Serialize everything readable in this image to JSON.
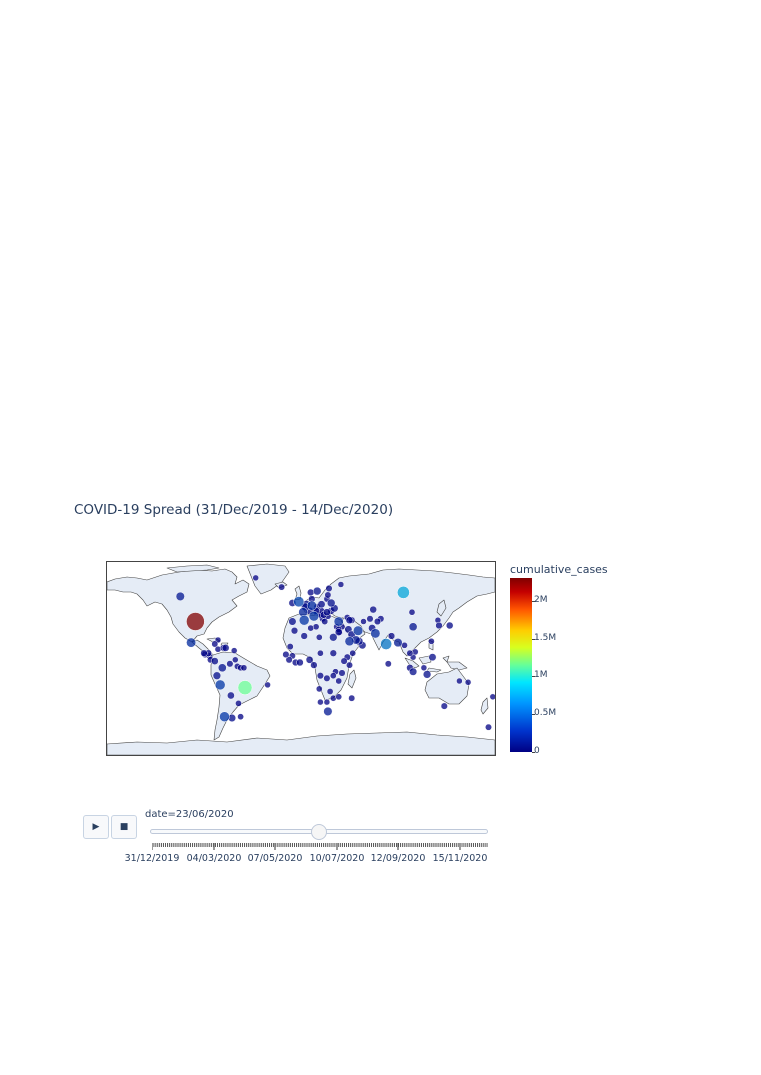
{
  "title": "COVID-19 Spread (31/Dec/2019 - 14/Dec/2020)",
  "colorbar": {
    "title": "cumulative_cases",
    "ticks": [
      "0",
      "0.5M",
      "1M",
      "1.5M",
      "2M"
    ],
    "tick_values": [
      0,
      500000,
      1000000,
      1500000,
      2000000
    ],
    "max": 2300000,
    "colorscale": "Jet"
  },
  "colors": {
    "land": "#e5ecf6",
    "coast": "#444444",
    "marker_low": "#000083",
    "marker_high": "#800000",
    "marker_opacity": 0.75
  },
  "animation": {
    "play_icon": "play-icon",
    "stop_icon": "stop-icon",
    "current_value": "date=23/06/2020",
    "current_fraction": 0.5,
    "frame_count": 350,
    "slider_labels": [
      "31/12/2019",
      "04/03/2020",
      "07/05/2020",
      "10/07/2020",
      "12/09/2020",
      "15/11/2020"
    ]
  },
  "chart_data": {
    "type": "scatter_geo",
    "projection": "equirectangular",
    "color_metric": "cumulative_cases",
    "size_metric": "cumulative_cases",
    "date": "23/06/2020",
    "points": [
      {
        "lon": -98,
        "lat": 39,
        "value": 2300000
      },
      {
        "lon": -52,
        "lat": -11,
        "value": 1100000
      },
      {
        "lon": 95,
        "lat": 61,
        "value": 600000
      },
      {
        "lon": 79,
        "lat": 22,
        "value": 440000
      },
      {
        "lon": -112,
        "lat": 58,
        "value": 100000
      },
      {
        "lon": -102,
        "lat": 23,
        "value": 190000
      },
      {
        "lon": -75,
        "lat": -9,
        "value": 260000
      },
      {
        "lon": -71,
        "lat": -33,
        "value": 250000
      },
      {
        "lon": 3,
        "lat": 40,
        "value": 246000
      },
      {
        "lon": 12,
        "lat": 43,
        "value": 238000
      },
      {
        "lon": -2,
        "lat": 54,
        "value": 306000
      },
      {
        "lon": 53,
        "lat": 32,
        "value": 209000
      },
      {
        "lon": 35,
        "lat": 39,
        "value": 190000
      },
      {
        "lon": 10,
        "lat": 51,
        "value": 191000
      },
      {
        "lon": 69,
        "lat": 30,
        "value": 185000
      },
      {
        "lon": 2,
        "lat": 46,
        "value": 160000
      },
      {
        "lon": 45,
        "lat": 24,
        "value": 161000
      },
      {
        "lon": -73,
        "lat": 4,
        "value": 71000
      },
      {
        "lon": 25,
        "lat": -29,
        "value": 101000
      },
      {
        "lon": 104,
        "lat": 35,
        "value": 84000
      },
      {
        "lon": 51,
        "lat": 25,
        "value": 90000
      },
      {
        "lon": 90,
        "lat": 23,
        "value": 112000
      },
      {
        "lon": 117,
        "lat": -1,
        "value": 47000
      },
      {
        "lon": 30,
        "lat": 27,
        "value": 57000
      },
      {
        "lon": -64,
        "lat": -34,
        "value": 44000
      },
      {
        "lon": 133,
        "lat": -25,
        "value": 7500
      },
      {
        "lon": 138,
        "lat": 36,
        "value": 18000
      },
      {
        "lon": 128,
        "lat": 36,
        "value": 12000
      },
      {
        "lon": 122,
        "lat": 12,
        "value": 31000
      },
      {
        "lon": 101,
        "lat": 4,
        "value": 8600
      },
      {
        "lon": 101,
        "lat": 15,
        "value": 3100
      },
      {
        "lon": 106,
        "lat": 16,
        "value": 350
      },
      {
        "lon": 104,
        "lat": 1,
        "value": 42000
      },
      {
        "lon": 67,
        "lat": 48,
        "value": 19000
      },
      {
        "lon": 64,
        "lat": 41,
        "value": 6500
      },
      {
        "lon": 44,
        "lat": 33,
        "value": 32000
      },
      {
        "lon": 47,
        "lat": 29,
        "value": 39000
      },
      {
        "lon": 54,
        "lat": 24,
        "value": 45000
      },
      {
        "lon": 57,
        "lat": 21,
        "value": 32000
      },
      {
        "lon": 48,
        "lat": 15,
        "value": 1000
      },
      {
        "lon": 36,
        "lat": 31,
        "value": 1100
      },
      {
        "lon": 35,
        "lat": 33,
        "value": 1600
      },
      {
        "lon": 38,
        "lat": 35,
        "value": 200
      },
      {
        "lon": 35,
        "lat": 31,
        "value": 20000
      },
      {
        "lon": 40,
        "lat": 9,
        "value": 5000
      },
      {
        "lon": 38,
        "lat": 0,
        "value": 4700
      },
      {
        "lon": 35,
        "lat": -6,
        "value": 500
      },
      {
        "lon": 30,
        "lat": 15,
        "value": 8600
      },
      {
        "lon": 18,
        "lat": 15,
        "value": 850
      },
      {
        "lon": 8,
        "lat": 10,
        "value": 21000
      },
      {
        "lon": -1,
        "lat": 8,
        "value": 14000
      },
      {
        "lon": -5,
        "lat": 8,
        "value": 8000
      },
      {
        "lon": -8,
        "lat": 13,
        "value": 1900
      },
      {
        "lon": -14,
        "lat": 14,
        "value": 6000
      },
      {
        "lon": -11,
        "lat": 10,
        "value": 5000
      },
      {
        "lon": -10,
        "lat": 20,
        "value": 2700
      },
      {
        "lon": 3,
        "lat": 28,
        "value": 12000
      },
      {
        "lon": 9,
        "lat": 34,
        "value": 1150
      },
      {
        "lon": 17,
        "lat": 27,
        "value": 600
      },
      {
        "lon": -6,
        "lat": 32,
        "value": 10000
      },
      {
        "lon": 12,
        "lat": 6,
        "value": 12500
      },
      {
        "lon": 18,
        "lat": -2,
        "value": 6200
      },
      {
        "lon": 24,
        "lat": -4,
        "value": 6200
      },
      {
        "lon": 17,
        "lat": -12,
        "value": 200
      },
      {
        "lon": 27,
        "lat": -14,
        "value": 1400
      },
      {
        "lon": 30,
        "lat": -19,
        "value": 500
      },
      {
        "lon": 35,
        "lat": -18,
        "value": 700
      },
      {
        "lon": 47,
        "lat": -19,
        "value": 1600
      },
      {
        "lon": 24,
        "lat": -22,
        "value": 90
      },
      {
        "lon": 18,
        "lat": -22,
        "value": 100
      },
      {
        "lon": 32,
        "lat": 1,
        "value": 800
      },
      {
        "lon": 30,
        "lat": -2,
        "value": 800
      },
      {
        "lon": 45,
        "lat": 6,
        "value": 2800
      },
      {
        "lon": 43,
        "lat": 12,
        "value": 4600
      },
      {
        "lon": 19,
        "lat": 52,
        "value": 32000
      },
      {
        "lon": 31,
        "lat": 49,
        "value": 38000
      },
      {
        "lon": 28,
        "lat": 53,
        "value": 58000
      },
      {
        "lon": 24,
        "lat": 46,
        "value": 24000
      },
      {
        "lon": 19,
        "lat": 47,
        "value": 4100
      },
      {
        "lon": 15,
        "lat": 50,
        "value": 10500
      },
      {
        "lon": 14,
        "lat": 47,
        "value": 17000
      },
      {
        "lon": 8,
        "lat": 47,
        "value": 31000
      },
      {
        "lon": 5,
        "lat": 52,
        "value": 50000
      },
      {
        "lon": 4,
        "lat": 50,
        "value": 61000
      },
      {
        "lon": -8,
        "lat": 39,
        "value": 39000
      },
      {
        "lon": -8,
        "lat": 53,
        "value": 25000
      },
      {
        "lon": 15,
        "lat": 62,
        "value": 60000
      },
      {
        "lon": 9,
        "lat": 61,
        "value": 8700
      },
      {
        "lon": 26,
        "lat": 64,
        "value": 7100
      },
      {
        "lon": 10,
        "lat": 56,
        "value": 12500
      },
      {
        "lon": 22,
        "lat": 39,
        "value": 3300
      },
      {
        "lon": 21,
        "lat": 44,
        "value": 12500
      },
      {
        "lon": 25,
        "lat": 43,
        "value": 3900
      },
      {
        "lon": 18,
        "lat": 44,
        "value": 3100
      },
      {
        "lon": 45,
        "lat": 40,
        "value": 22000
      },
      {
        "lon": 47,
        "lat": 40,
        "value": 11000
      },
      {
        "lon": 43,
        "lat": 42,
        "value": 900
      },
      {
        "lon": 74,
        "lat": 41,
        "value": 4200
      },
      {
        "lon": 71,
        "lat": 39,
        "value": 5400
      },
      {
        "lon": 66,
        "lat": 34,
        "value": 29000
      },
      {
        "lon": 84,
        "lat": 28,
        "value": 9500
      },
      {
        "lon": 81,
        "lat": 7,
        "value": 2000
      },
      {
        "lon": 96,
        "lat": 21,
        "value": 290
      },
      {
        "lon": 104,
        "lat": 12,
        "value": 130
      },
      {
        "lon": 103,
        "lat": 46,
        "value": 200
      },
      {
        "lon": 114,
        "lat": 4,
        "value": 140
      },
      {
        "lon": 147,
        "lat": -6,
        "value": 10
      },
      {
        "lon": 174,
        "lat": -41,
        "value": 1500
      },
      {
        "lon": 178,
        "lat": -18,
        "value": 18
      },
      {
        "lon": -77,
        "lat": 25,
        "value": 104
      },
      {
        "lon": -70,
        "lat": 19,
        "value": 26000
      },
      {
        "lon": -72,
        "lat": 19,
        "value": 5000
      },
      {
        "lon": -77,
        "lat": 18,
        "value": 680
      },
      {
        "lon": -80,
        "lat": 22,
        "value": 2300
      },
      {
        "lon": -86,
        "lat": 15,
        "value": 11000
      },
      {
        "lon": -90,
        "lat": 15,
        "value": 12000
      },
      {
        "lon": -89,
        "lat": 14,
        "value": 4600
      },
      {
        "lon": -85,
        "lat": 13,
        "value": 2000
      },
      {
        "lon": -84,
        "lat": 10,
        "value": 2300
      },
      {
        "lon": -80,
        "lat": 9,
        "value": 26000
      },
      {
        "lon": -66,
        "lat": 7,
        "value": 4100
      },
      {
        "lon": -78,
        "lat": -2,
        "value": 52000
      },
      {
        "lon": -65,
        "lat": -17,
        "value": 26000
      },
      {
        "lon": -58,
        "lat": -23,
        "value": 1400
      },
      {
        "lon": -56,
        "lat": -33,
        "value": 900
      },
      {
        "lon": -59,
        "lat": 5,
        "value": 200
      },
      {
        "lon": -56,
        "lat": 4,
        "value": 300
      },
      {
        "lon": -53,
        "lat": 4,
        "value": 700
      },
      {
        "lon": -61,
        "lat": 10,
        "value": 125
      },
      {
        "lon": -62,
        "lat": 17,
        "value": 70
      },
      {
        "lon": -18,
        "lat": 65,
        "value": 1800
      },
      {
        "lon": -42,
        "lat": 72,
        "value": 13
      },
      {
        "lon": 37,
        "lat": 67,
        "value": 100
      },
      {
        "lon": 14,
        "lat": 35,
        "value": 670
      },
      {
        "lon": 33,
        "lat": 35,
        "value": 990
      },
      {
        "lon": 20,
        "lat": 41,
        "value": 1900
      },
      {
        "lon": 28,
        "lat": 47,
        "value": 14000
      },
      {
        "lon": 24,
        "lat": 56,
        "value": 1100
      },
      {
        "lon": 25,
        "lat": 59,
        "value": 2000
      },
      {
        "lon": 17,
        "lat": 45,
        "value": 2500
      },
      {
        "lon": 14,
        "lat": 46,
        "value": 1500
      },
      {
        "lon": 58,
        "lat": 39,
        "value": 30
      },
      {
        "lon": 127,
        "lat": 40,
        "value": 20
      },
      {
        "lon": 121,
        "lat": 24,
        "value": 450
      },
      {
        "lon": 155,
        "lat": -7,
        "value": 10
      },
      {
        "lon": -31,
        "lat": -9,
        "value": 50
      }
    ]
  }
}
